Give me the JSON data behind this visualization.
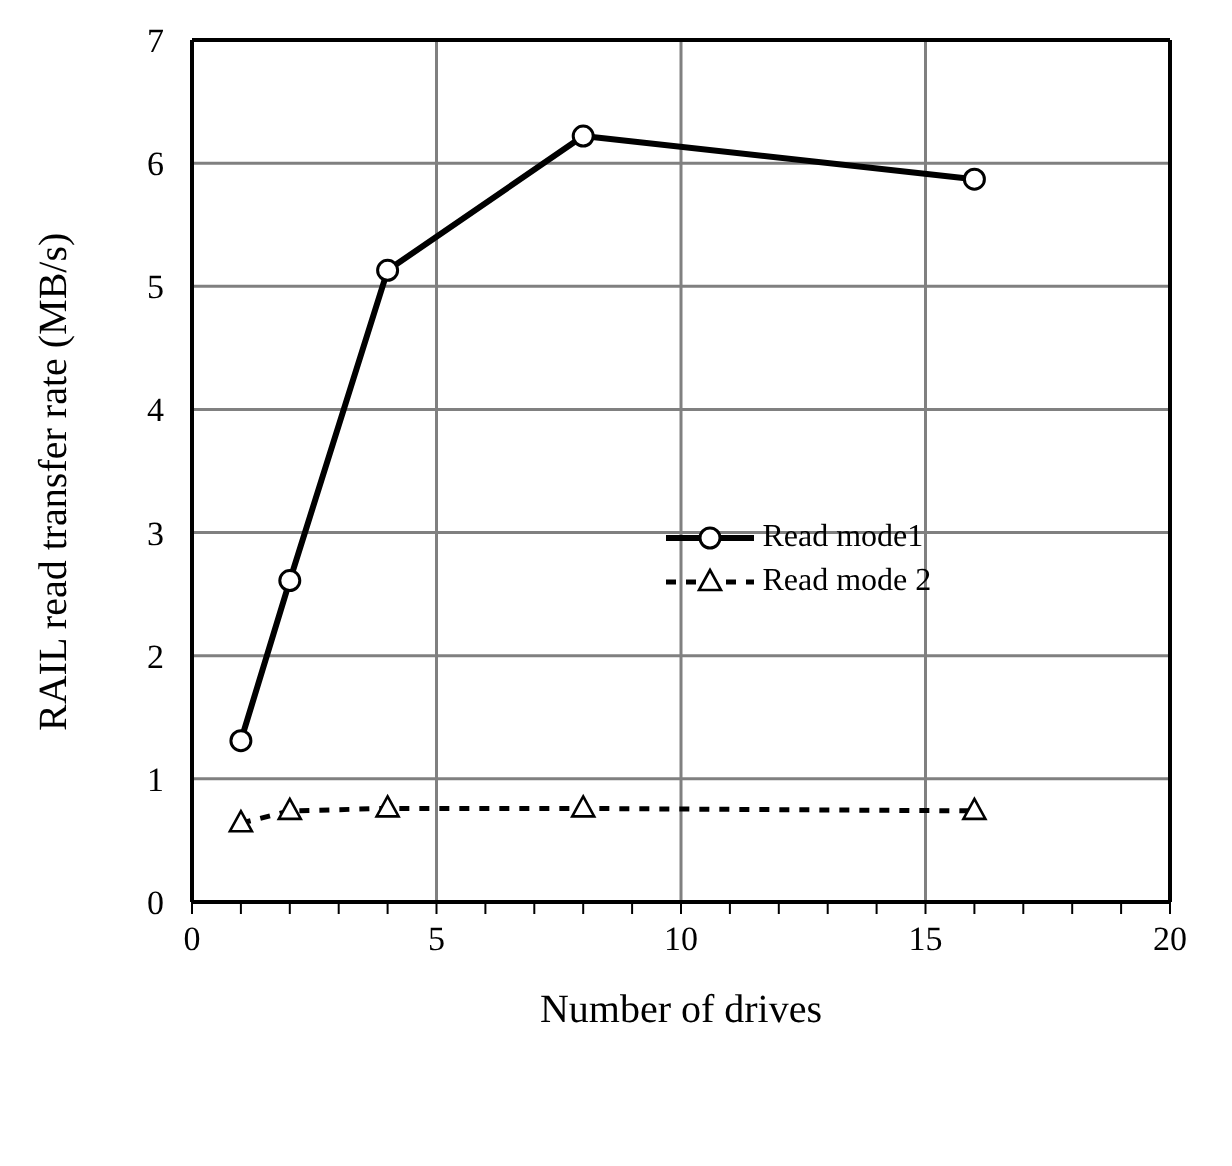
{
  "chart_data": {
    "type": "line",
    "xlabel": "Number of drives",
    "ylabel": "RAIL read transfer rate (MB/s)",
    "xlim": [
      0,
      20
    ],
    "xticks": [
      0,
      {
        "value": 1,
        "label": null
      },
      {
        "value": 2,
        "label": null
      },
      {
        "value": 3,
        "label": null
      },
      {
        "value": 4,
        "label": null
      },
      5,
      {
        "value": 6,
        "label": null
      },
      {
        "value": 7,
        "label": null
      },
      {
        "value": 8,
        "label": null
      },
      {
        "value": 9,
        "label": null
      },
      10,
      {
        "value": 11,
        "label": null
      },
      {
        "value": 12,
        "label": null
      },
      {
        "value": 13,
        "label": null
      },
      {
        "value": 14,
        "label": null
      },
      15,
      {
        "value": 16,
        "label": null
      },
      {
        "value": 17,
        "label": null
      },
      {
        "value": 18,
        "label": null
      },
      {
        "value": 19,
        "label": null
      },
      20
    ],
    "ylim": [
      0,
      7
    ],
    "yticks": [
      0,
      1,
      2,
      3,
      4,
      5,
      6,
      7
    ],
    "grid": true,
    "legend": "right",
    "x": [
      1,
      2,
      4,
      8,
      16
    ],
    "series": [
      {
        "name": "Read mode1",
        "color": "#000000",
        "values": [
          1.31,
          2.61,
          5.13,
          6.22,
          5.87
        ],
        "marker": "circle",
        "line_style": "solid"
      },
      {
        "name": "Read mode 2",
        "color": "#000000",
        "values": [
          0.64,
          0.74,
          0.76,
          0.76,
          0.74
        ],
        "marker": "triangle",
        "line_style": "dashed"
      }
    ]
  }
}
